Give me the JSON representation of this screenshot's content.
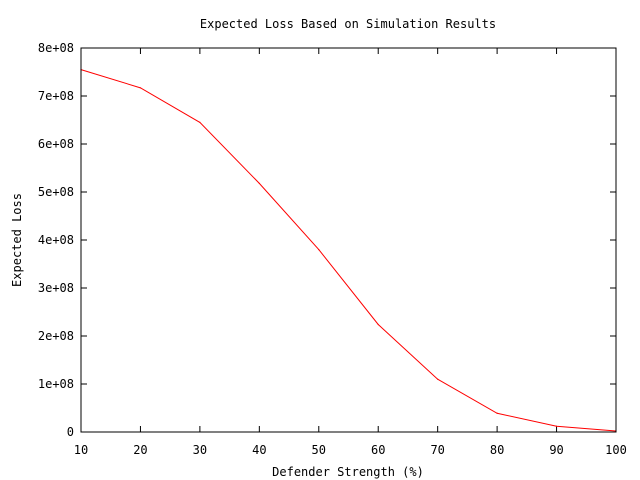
{
  "chart_data": {
    "type": "line",
    "title": "Expected Loss Based on Simulation Results",
    "xlabel": "Defender Strength (%)",
    "ylabel": "Expected Loss",
    "xlim": [
      10,
      100
    ],
    "ylim": [
      0,
      800000000
    ],
    "x_ticks": [
      10,
      20,
      30,
      40,
      50,
      60,
      70,
      80,
      90,
      100
    ],
    "x_tick_labels": [
      "10",
      "20",
      "30",
      "40",
      "50",
      "60",
      "70",
      "80",
      "90",
      "100"
    ],
    "y_ticks": [
      0,
      100000000,
      200000000,
      300000000,
      400000000,
      500000000,
      600000000,
      700000000,
      800000000
    ],
    "y_tick_labels": [
      "0",
      "1e+08",
      "2e+08",
      "3e+08",
      "4e+08",
      "5e+08",
      "6e+08",
      "7e+08",
      "8e+08"
    ],
    "grid": false,
    "legend": "none",
    "series": [
      {
        "name": "Expected Loss",
        "color": "#ff0000",
        "x": [
          10,
          20,
          30,
          40,
          50,
          60,
          70,
          80,
          90,
          100
        ],
        "values": [
          755000000,
          717000000,
          645000000,
          518000000,
          380000000,
          224000000,
          110000000,
          39000000,
          12000000,
          2000000
        ]
      }
    ]
  }
}
